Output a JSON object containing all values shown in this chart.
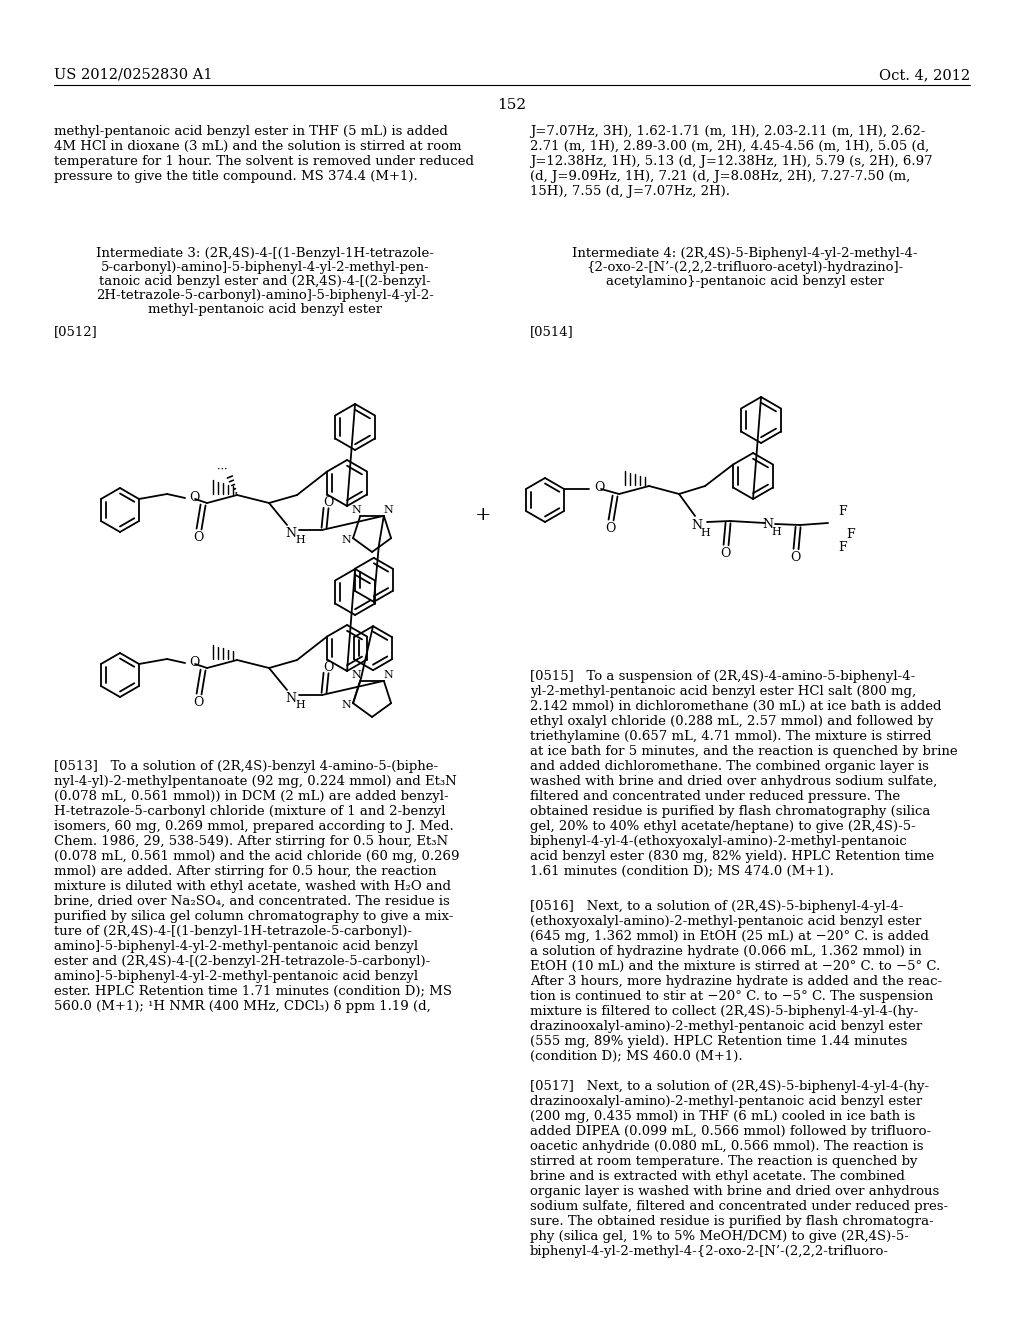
{
  "page_header_left": "US 2012/0252830 A1",
  "page_header_right": "Oct. 4, 2012",
  "page_number": "152",
  "background_color": "#ffffff",
  "text_color": "#000000",
  "left_top_text": "methyl-pentanoic acid benzyl ester in THF (5 mL) is added\n4M HCl in dioxane (3 mL) and the solution is stirred at room\ntemperature for 1 hour. The solvent is removed under reduced\npressure to give the title compound. MS 374.4 (M+1).",
  "right_top_text": "J=7.07Hz, 3H), 1.62-1.71 (m, 1H), 2.03-2.11 (m, 1H), 2.62-\n2.71 (m, 1H), 2.89-3.00 (m, 2H), 4.45-4.56 (m, 1H), 5.05 (d,\nJ=12.38Hz, 1H), 5.13 (d, J=12.38Hz, 1H), 5.79 (s, 2H), 6.97\n(d, J=9.09Hz, 1H), 7.21 (d, J=8.08Hz, 2H), 7.27-7.50 (m,\n15H), 7.55 (d, J=7.07Hz, 2H).",
  "int3_title_line1": "Intermediate 3: (2R,4S)-4-[(1-Benzyl-1H-tetrazole-",
  "int3_title_line2": "5-carbonyl)-amino]-5-biphenyl-4-yl-2-methyl-pen-",
  "int3_title_line3": "tanoic acid benzyl ester and (2R,4S)-4-[(2-benzyl-",
  "int3_title_line4": "2H-tetrazole-5-carbonyl)-amino]-5-biphenyl-4-yl-2-",
  "int3_title_line5": "methyl-pentanoic acid benzyl ester",
  "int4_title_line1": "Intermediate 4: (2R,4S)-5-Biphenyl-4-yl-2-methyl-4-",
  "int4_title_line2": "{2-oxo-2-[N’-(2,2,2-trifluoro-acetyl)-hydrazino]-",
  "int4_title_line3": "acetylamino}-pentanoic acid benzyl ester",
  "label_0512": "[0512]",
  "label_0514": "[0514]",
  "para_0513": "[0513]   To a solution of (2R,4S)-benzyl 4-amino-5-(biphe-\nnyl-4-yl)-2-methylpentanoate (92 mg, 0.224 mmol) and Et₃N\n(0.078 mL, 0.561 mmol)) in DCM (2 mL) are added benzyl-\nH-tetrazole-5-carbonyl chloride (mixture of 1 and 2-benzyl\nisomers, 60 mg, 0.269 mmol, prepared according to J. Med.\nChem. 1986, 29, 538-549). After stirring for 0.5 hour, Et₃N\n(0.078 mL, 0.561 mmol) and the acid chloride (60 mg, 0.269\nmmol) are added. After stirring for 0.5 hour, the reaction\nmixture is diluted with ethyl acetate, washed with H₂O and\nbrine, dried over Na₂SO₄, and concentrated. The residue is\npurified by silica gel column chromatography to give a mix-\nture of (2R,4S)-4-[(1-benzyl-1H-tetrazole-5-carbonyl)-\namino]-5-biphenyl-4-yl-2-methyl-pentanoic acid benzyl\nester and (2R,4S)-4-[(2-benzyl-2H-tetrazole-5-carbonyl)-\namino]-5-biphenyl-4-yl-2-methyl-pentanoic acid benzyl\nester. HPLC Retention time 1.71 minutes (condition D); MS\n560.0 (M+1); ¹H NMR (400 MHz, CDCl₃) δ ppm 1.19 (d,",
  "para_0515": "[0515]   To a suspension of (2R,4S)-4-amino-5-biphenyl-4-\nyl-2-methyl-pentanoic acid benzyl ester HCl salt (800 mg,\n2.142 mmol) in dichloromethane (30 mL) at ice bath is added\nethyl oxalyl chloride (0.288 mL, 2.57 mmol) and followed by\ntriethylamine (0.657 mL, 4.71 mmol). The mixture is stirred\nat ice bath for 5 minutes, and the reaction is quenched by brine\nand added dichloromethane. The combined organic layer is\nwashed with brine and dried over anhydrous sodium sulfate,\nfiltered and concentrated under reduced pressure. The\nobtained residue is purified by flash chromatography (silica\ngel, 20% to 40% ethyl acetate/heptane) to give (2R,4S)-5-\nbiphenyl-4-yl-4-(ethoxyoxalyl-amino)-2-methyl-pentanoic\nacid benzyl ester (830 mg, 82% yield). HPLC Retention time\n1.61 minutes (condition D); MS 474.0 (M+1).",
  "para_0516": "[0516]   Next, to a solution of (2R,4S)-5-biphenyl-4-yl-4-\n(ethoxyoxalyl-amino)-2-methyl-pentanoic acid benzyl ester\n(645 mg, 1.362 mmol) in EtOH (25 mL) at −20° C. is added\na solution of hydrazine hydrate (0.066 mL, 1.362 mmol) in\nEtOH (10 mL) and the mixture is stirred at −20° C. to −5° C.\nAfter 3 hours, more hydrazine hydrate is added and the reac-\ntion is continued to stir at −20° C. to −5° C. The suspension\nmixture is filtered to collect (2R,4S)-5-biphenyl-4-yl-4-(hy-\ndrazinooxalyl-amino)-2-methyl-pentanoic acid benzyl ester\n(555 mg, 89% yield). HPLC Retention time 1.44 minutes\n(condition D); MS 460.0 (M+1).",
  "para_0517": "[0517]   Next, to a solution of (2R,4S)-5-biphenyl-4-yl-4-(hy-\ndrazinooxalyl-amino)-2-methyl-pentanoic acid benzyl ester\n(200 mg, 0.435 mmol) in THF (6 mL) cooled in ice bath is\nadded DIPEA (0.099 mL, 0.566 mmol) followed by trifluoro-\noacetic anhydride (0.080 mL, 0.566 mmol). The reaction is\nstirred at room temperature. The reaction is quenched by\nbrine and is extracted with ethyl acetate. The combined\norganic layer is washed with brine and dried over anhydrous\nsodium sulfate, filtered and concentrated under reduced pres-\nsure. The obtained residue is purified by flash chromatogra-\nphy (silica gel, 1% to 5% MeOH/DCM) to give (2R,4S)-5-\nbiphenyl-4-yl-2-methyl-4-{2-oxo-2-[N’-(2,2,2-trifluoro-"
}
